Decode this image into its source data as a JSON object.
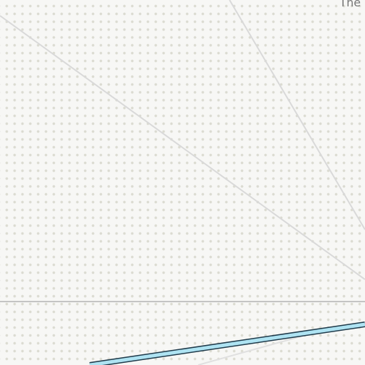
{
  "map": {
    "place_label": "The",
    "colors": {
      "background": "#f7f7f5",
      "dot_pattern": "#dcdcd2",
      "minor_road": "#d9d9d9",
      "boundary_line": "#c4c4c4",
      "waterway_fill": "#aee3f2",
      "waterway_casing": "#1f3a4a"
    },
    "features": [
      {
        "name": "minor-road",
        "kind": "road"
      },
      {
        "name": "boundary-line",
        "kind": "boundary"
      },
      {
        "name": "waterway",
        "kind": "water"
      }
    ]
  }
}
